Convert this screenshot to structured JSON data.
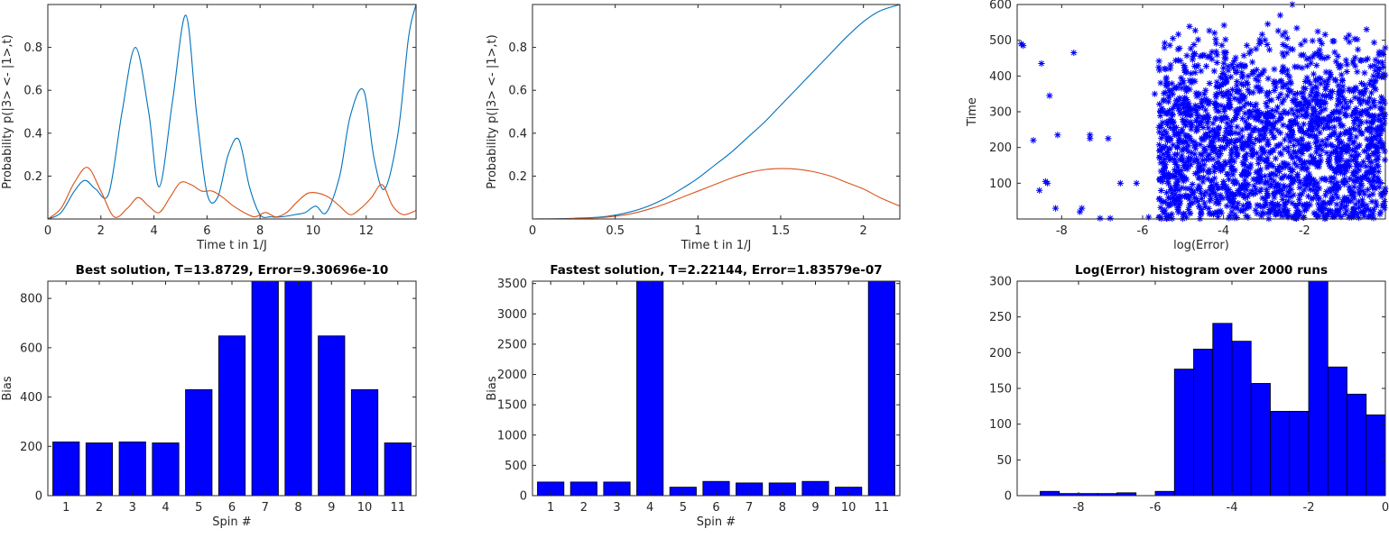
{
  "charts": [
    {
      "type": "line",
      "xlabel": "Time t in 1/J",
      "ylabel": "Probability p(|3> <- |1>,t)",
      "xlim": [
        0,
        13.88
      ],
      "ylim": [
        0,
        1
      ],
      "xticks": [
        0,
        2,
        4,
        6,
        8,
        10,
        12
      ],
      "yticks": [
        0.2,
        0.4,
        0.6,
        0.8
      ],
      "series": [
        {
          "color": "#0072BD",
          "x": [
            0,
            0.5,
            1.0,
            1.4,
            1.8,
            2.3,
            2.8,
            3.3,
            3.8,
            4.2,
            4.7,
            5.2,
            5.6,
            6.0,
            6.4,
            6.8,
            7.2,
            7.6,
            8.0,
            8.4,
            8.8,
            9.3,
            9.7,
            10.1,
            10.5,
            11.0,
            11.4,
            11.9,
            12.3,
            12.7,
            13.2,
            13.6,
            13.88
          ],
          "y": [
            0.0,
            0.03,
            0.13,
            0.18,
            0.14,
            0.12,
            0.5,
            0.8,
            0.5,
            0.15,
            0.55,
            0.95,
            0.5,
            0.12,
            0.1,
            0.3,
            0.37,
            0.15,
            0.02,
            0.01,
            0.01,
            0.02,
            0.03,
            0.06,
            0.03,
            0.2,
            0.48,
            0.6,
            0.28,
            0.14,
            0.4,
            0.85,
            1.0
          ]
        },
        {
          "color": "#D95319",
          "x": [
            0,
            0.5,
            1.0,
            1.5,
            2.0,
            2.5,
            3.0,
            3.4,
            3.8,
            4.2,
            4.6,
            5.0,
            5.4,
            5.8,
            6.2,
            6.6,
            7.0,
            7.4,
            7.8,
            8.2,
            8.6,
            9.0,
            9.4,
            9.8,
            10.2,
            10.6,
            11.0,
            11.4,
            11.8,
            12.2,
            12.6,
            13.0,
            13.4,
            13.88
          ],
          "y": [
            0.0,
            0.05,
            0.17,
            0.24,
            0.13,
            0.01,
            0.05,
            0.1,
            0.06,
            0.03,
            0.1,
            0.17,
            0.16,
            0.13,
            0.13,
            0.1,
            0.06,
            0.03,
            0.01,
            0.03,
            0.01,
            0.03,
            0.08,
            0.12,
            0.12,
            0.1,
            0.06,
            0.02,
            0.05,
            0.1,
            0.16,
            0.06,
            0.02,
            0.04
          ]
        }
      ]
    },
    {
      "type": "line",
      "xlabel": "Time t in 1/J",
      "ylabel": "Probability p(|3> <- |1>,t)",
      "xlim": [
        0,
        2.22
      ],
      "ylim": [
        0,
        1
      ],
      "xticks": [
        0,
        0.5,
        1,
        1.5,
        2
      ],
      "yticks": [
        0.2,
        0.4,
        0.6,
        0.8
      ],
      "series": [
        {
          "color": "#0072BD",
          "x": [
            0,
            0.2,
            0.4,
            0.5,
            0.6,
            0.7,
            0.8,
            0.9,
            1.0,
            1.1,
            1.2,
            1.3,
            1.4,
            1.5,
            1.6,
            1.7,
            1.8,
            1.9,
            2.0,
            2.1,
            2.22
          ],
          "y": [
            0.0,
            0.002,
            0.008,
            0.018,
            0.035,
            0.06,
            0.095,
            0.14,
            0.19,
            0.25,
            0.31,
            0.38,
            0.45,
            0.53,
            0.61,
            0.69,
            0.77,
            0.85,
            0.92,
            0.97,
            1.0
          ]
        },
        {
          "color": "#D95319",
          "x": [
            0,
            0.2,
            0.4,
            0.5,
            0.6,
            0.7,
            0.8,
            0.9,
            1.0,
            1.1,
            1.2,
            1.3,
            1.4,
            1.5,
            1.6,
            1.7,
            1.8,
            1.9,
            2.0,
            2.1,
            2.22
          ],
          "y": [
            0.0,
            0.001,
            0.006,
            0.013,
            0.025,
            0.045,
            0.07,
            0.1,
            0.13,
            0.16,
            0.19,
            0.215,
            0.23,
            0.235,
            0.232,
            0.22,
            0.2,
            0.17,
            0.14,
            0.1,
            0.06
          ]
        }
      ]
    },
    {
      "type": "scatter",
      "xlabel": "log(Error)",
      "ylabel": "Time",
      "xlim": [
        -9.1,
        0
      ],
      "ylim": [
        0,
        600
      ],
      "xticks": [
        -8,
        -6,
        -4,
        -2
      ],
      "yticks": [
        100,
        200,
        300,
        400,
        500,
        600
      ],
      "marker": "*",
      "color": "#0000FF",
      "n_runs": 2000,
      "sample_points": [
        [
          -9.0,
          490
        ],
        [
          -8.95,
          485
        ],
        [
          -8.7,
          220
        ],
        [
          -8.55,
          80
        ],
        [
          -8.5,
          435
        ],
        [
          -8.4,
          105
        ],
        [
          -8.35,
          100
        ],
        [
          -8.3,
          345
        ],
        [
          -8.15,
          30
        ],
        [
          -8.1,
          235
        ],
        [
          -7.7,
          465
        ],
        [
          -7.55,
          20
        ],
        [
          -7.5,
          30
        ],
        [
          -7.3,
          235
        ],
        [
          -7.3,
          225
        ],
        [
          -7.05,
          2
        ],
        [
          -6.85,
          225
        ],
        [
          -6.8,
          2
        ],
        [
          -6.55,
          100
        ],
        [
          -6.15,
          100
        ],
        [
          -5.85,
          5
        ],
        [
          -5.7,
          350
        ],
        [
          -5.6,
          425
        ],
        [
          -5.35,
          3
        ],
        [
          -5.25,
          505
        ],
        [
          -2.6,
          570
        ],
        [
          -2.3,
          600
        ]
      ]
    },
    {
      "type": "bar",
      "title": "Best solution, T=13.8729, Error=9.30696e-10",
      "xlabel": "Spin #",
      "ylabel": "Bias",
      "categories": [
        "1",
        "2",
        "3",
        "4",
        "5",
        "6",
        "7",
        "8",
        "9",
        "10",
        "11"
      ],
      "values": [
        218,
        214,
        218,
        214,
        430,
        648,
        870,
        870,
        648,
        430,
        214
      ],
      "ylim": [
        0,
        870
      ],
      "yticks": [
        0,
        200,
        400,
        600,
        800
      ],
      "color": "#0000FF"
    },
    {
      "type": "bar",
      "title": "Fastest solution, T=2.22144, Error=1.83579e-07",
      "xlabel": "Spin #",
      "ylabel": "Bias",
      "categories": [
        "1",
        "2",
        "3",
        "4",
        "5",
        "6",
        "7",
        "8",
        "9",
        "10",
        "11"
      ],
      "values": [
        225,
        225,
        225,
        3540,
        140,
        235,
        210,
        210,
        235,
        140,
        3540
      ],
      "ylim": [
        0,
        3540
      ],
      "yticks": [
        0,
        500,
        1000,
        1500,
        2000,
        2500,
        3000,
        3500
      ],
      "color": "#0000FF"
    },
    {
      "type": "bar",
      "title": "Log(Error) histogram over 2000 runs",
      "categories": [
        "-8.8",
        "-8.3",
        "-7.8",
        "-7.3",
        "-6.8",
        "-6.3",
        "-5.8",
        "-5.3",
        "-4.8",
        "-4.3",
        "-3.8",
        "-3.3",
        "-2.8",
        "-2.3",
        "-1.8",
        "-1.3",
        "-0.8",
        "-0.3"
      ],
      "bin_edges": [
        -9.0,
        -8.5,
        -8.0,
        -7.5,
        -7.0,
        -6.5,
        -6.0,
        -5.5,
        -5.0,
        -4.5,
        -4.0,
        -3.5,
        -3.0,
        -2.5,
        -2.0,
        -1.5,
        -1.0,
        -0.5,
        0.0
      ],
      "values": [
        6,
        3,
        3,
        3,
        4,
        0,
        6,
        177,
        205,
        241,
        216,
        157,
        118,
        118,
        300,
        180,
        142,
        113
      ],
      "xlim": [
        -9.6,
        0
      ],
      "ylim": [
        0,
        300
      ],
      "xticks": [
        -8,
        -6,
        -4,
        -2,
        0
      ],
      "yticks": [
        0,
        50,
        100,
        150,
        200,
        250,
        300
      ],
      "color": "#0000FF"
    }
  ]
}
